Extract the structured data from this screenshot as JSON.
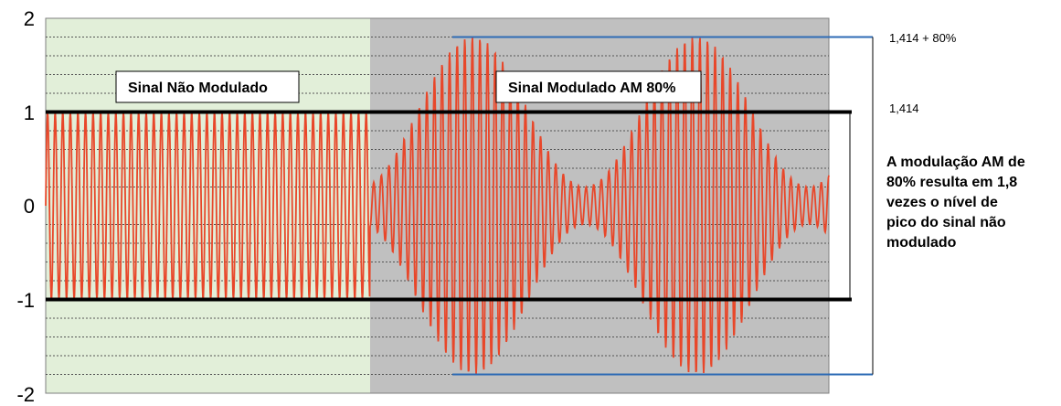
{
  "chart_data": {
    "type": "line",
    "title": "",
    "xlabel": "",
    "ylabel": "",
    "ylim": [
      -2,
      2
    ],
    "y_ticks": [
      "2",
      "1",
      "0",
      "-1",
      "-2"
    ],
    "grid": "dotted horizontal lines",
    "regions": [
      {
        "label": "Sinal Não Modulado",
        "color": "#e2efd9"
      },
      {
        "label": "Sinal Modulado AM 80%",
        "color": "#c0c0c0"
      }
    ],
    "series": [
      {
        "color": "#e8472a",
        "unmodulated_amplitude": 1.0,
        "modulated_peak": 1.8,
        "modulated_trough": 0.2,
        "modulation_depth_percent": 80
      }
    ],
    "reference_lines": {
      "unmodulated_peak_values": [
        1,
        -1
      ],
      "modulated_peak_values": [
        1.8,
        -1.8
      ]
    },
    "annotations": {
      "modulated_peak_label": "1,414 + 80%",
      "unmodulated_peak_label": "1,414",
      "note_lines": [
        "A modulação AM de",
        "80% resulta em 1,8",
        "vezes o nível de",
        "pico do sinal não",
        "modulado"
      ]
    },
    "colors": {
      "signal": "#e8472a",
      "thick_line": "#000000",
      "blue_line": "#2e6bb5",
      "gridline": "#555555"
    }
  }
}
